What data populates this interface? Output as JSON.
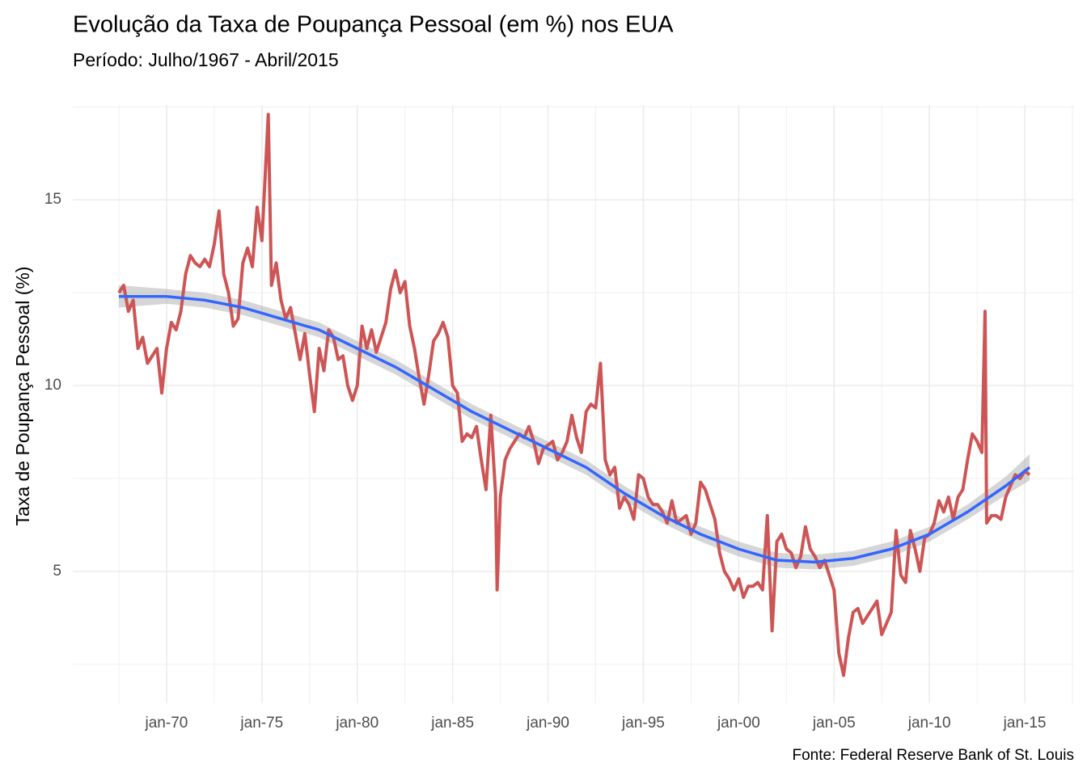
{
  "chart_data": {
    "type": "line",
    "title": "Evolução da Taxa de Poupança Pessoal (em %) nos EUA",
    "subtitle": "Período: Julho/1967 - Abril/2015",
    "y_label": "Taxa de Poupança Pessoal (%)",
    "caption": "Fonte: Federal Reserve Bank of St. Louis",
    "grid": true,
    "xlim": [
      "1965-02",
      "2017-08"
    ],
    "xticks": [
      {
        "value": "1970-01",
        "label": "jan-70"
      },
      {
        "value": "1975-01",
        "label": "jan-75"
      },
      {
        "value": "1980-01",
        "label": "jan-80"
      },
      {
        "value": "1985-01",
        "label": "jan-85"
      },
      {
        "value": "1990-01",
        "label": "jan-90"
      },
      {
        "value": "1995-01",
        "label": "jan-95"
      },
      {
        "value": "2000-01",
        "label": "jan-00"
      },
      {
        "value": "2005-01",
        "label": "jan-05"
      },
      {
        "value": "2010-01",
        "label": "jan-10"
      },
      {
        "value": "2015-01",
        "label": "jan-15"
      }
    ],
    "ylim": [
      1.45,
      17.55
    ],
    "yticks": [
      5,
      10,
      15
    ],
    "series": [
      {
        "color": "#cd5555",
        "x": [
          "1967-07",
          "1967-10",
          "1968-01",
          "1968-04",
          "1968-07",
          "1968-10",
          "1969-01",
          "1969-04",
          "1969-07",
          "1969-10",
          "1970-01",
          "1970-04",
          "1970-07",
          "1970-10",
          "1971-01",
          "1971-04",
          "1971-07",
          "1971-10",
          "1972-01",
          "1972-04",
          "1972-07",
          "1972-10",
          "1973-01",
          "1973-04",
          "1973-07",
          "1973-10",
          "1974-01",
          "1974-04",
          "1974-07",
          "1974-10",
          "1975-01",
          "1975-05",
          "1975-07",
          "1975-10",
          "1976-01",
          "1976-04",
          "1976-07",
          "1976-10",
          "1977-01",
          "1977-04",
          "1977-07",
          "1977-10",
          "1978-01",
          "1978-04",
          "1978-07",
          "1978-10",
          "1979-01",
          "1979-04",
          "1979-07",
          "1979-10",
          "1980-01",
          "1980-04",
          "1980-07",
          "1980-10",
          "1981-01",
          "1981-04",
          "1981-07",
          "1981-10",
          "1982-01",
          "1982-04",
          "1982-07",
          "1982-10",
          "1983-01",
          "1983-04",
          "1983-07",
          "1983-10",
          "1984-01",
          "1984-04",
          "1984-07",
          "1984-10",
          "1985-01",
          "1985-04",
          "1985-07",
          "1985-10",
          "1986-01",
          "1986-04",
          "1986-07",
          "1986-10",
          "1987-01",
          "1987-04",
          "1987-05",
          "1987-07",
          "1987-10",
          "1988-01",
          "1988-04",
          "1988-07",
          "1988-10",
          "1989-01",
          "1989-04",
          "1989-07",
          "1989-10",
          "1990-01",
          "1990-04",
          "1990-07",
          "1990-10",
          "1991-01",
          "1991-04",
          "1991-07",
          "1991-10",
          "1992-01",
          "1992-04",
          "1992-07",
          "1992-10",
          "1993-01",
          "1993-04",
          "1993-07",
          "1993-10",
          "1994-01",
          "1994-04",
          "1994-07",
          "1994-10",
          "1995-01",
          "1995-04",
          "1995-07",
          "1995-10",
          "1996-01",
          "1996-04",
          "1996-07",
          "1996-10",
          "1997-01",
          "1997-04",
          "1997-07",
          "1997-10",
          "1998-01",
          "1998-04",
          "1998-07",
          "1998-10",
          "1999-01",
          "1999-04",
          "1999-07",
          "1999-10",
          "2000-01",
          "2000-04",
          "2000-07",
          "2000-10",
          "2001-01",
          "2001-04",
          "2001-07",
          "2001-10",
          "2002-01",
          "2002-04",
          "2002-07",
          "2002-10",
          "2003-01",
          "2003-04",
          "2003-07",
          "2003-10",
          "2004-01",
          "2004-04",
          "2004-07",
          "2004-10",
          "2005-01",
          "2005-04",
          "2005-07",
          "2005-10",
          "2006-01",
          "2006-04",
          "2006-07",
          "2006-10",
          "2007-01",
          "2007-04",
          "2007-07",
          "2007-10",
          "2008-01",
          "2008-04",
          "2008-07",
          "2008-10",
          "2009-01",
          "2009-04",
          "2009-07",
          "2009-10",
          "2010-01",
          "2010-04",
          "2010-07",
          "2010-10",
          "2011-01",
          "2011-04",
          "2011-07",
          "2011-10",
          "2012-01",
          "2012-04",
          "2012-07",
          "2012-10",
          "2012-12",
          "2013-01",
          "2013-04",
          "2013-07",
          "2013-10",
          "2014-01",
          "2014-04",
          "2014-07",
          "2014-10",
          "2015-01",
          "2015-04"
        ],
        "values": [
          12.5,
          12.7,
          12.0,
          12.3,
          11.0,
          11.3,
          10.6,
          10.8,
          11.0,
          9.8,
          11.0,
          11.7,
          11.5,
          12.0,
          13.0,
          13.5,
          13.3,
          13.2,
          13.4,
          13.2,
          13.8,
          14.7,
          13.0,
          12.5,
          11.6,
          11.8,
          13.3,
          13.7,
          13.2,
          14.8,
          13.9,
          17.3,
          12.7,
          13.3,
          12.3,
          11.8,
          12.1,
          11.4,
          10.7,
          11.4,
          10.3,
          9.3,
          11.0,
          10.4,
          11.5,
          11.3,
          10.7,
          10.8,
          10.0,
          9.6,
          10.0,
          11.6,
          11.0,
          11.5,
          10.9,
          11.3,
          11.7,
          12.6,
          13.1,
          12.5,
          12.8,
          11.6,
          11.0,
          10.2,
          9.5,
          10.3,
          11.2,
          11.4,
          11.7,
          11.3,
          10.0,
          9.8,
          8.5,
          8.7,
          8.6,
          8.9,
          8.0,
          7.2,
          9.2,
          7.1,
          4.5,
          7.0,
          8.0,
          8.3,
          8.5,
          8.7,
          8.6,
          8.9,
          8.5,
          7.9,
          8.3,
          8.4,
          8.5,
          8.0,
          8.2,
          8.5,
          9.2,
          8.6,
          8.2,
          9.3,
          9.5,
          9.4,
          10.6,
          8.0,
          7.6,
          7.8,
          6.7,
          7.0,
          6.8,
          6.4,
          7.6,
          7.5,
          7.0,
          6.8,
          6.8,
          6.6,
          6.3,
          6.9,
          6.3,
          6.4,
          6.5,
          6.0,
          6.3,
          7.4,
          7.2,
          6.8,
          6.4,
          5.5,
          5.0,
          4.8,
          4.5,
          4.8,
          4.3,
          4.6,
          4.6,
          4.7,
          4.5,
          6.5,
          3.4,
          5.8,
          6.0,
          5.6,
          5.5,
          5.1,
          5.4,
          6.2,
          5.6,
          5.4,
          5.1,
          5.3,
          4.9,
          4.5,
          2.8,
          2.2,
          3.2,
          3.9,
          4.0,
          3.6,
          3.8,
          4.0,
          4.2,
          3.3,
          3.6,
          3.9,
          6.1,
          4.9,
          4.7,
          6.1,
          5.6,
          5.0,
          5.9,
          6.0,
          6.3,
          6.9,
          6.6,
          7.0,
          6.4,
          7.0,
          7.2,
          8.0,
          8.7,
          8.5,
          8.2,
          12.0,
          6.3,
          6.5,
          6.5,
          6.4,
          7.0,
          7.3,
          7.6,
          7.5,
          7.7,
          7.6
        ]
      },
      {
        "color": "#3366ff",
        "band_color": "#999999",
        "x": [
          "1967-07",
          "1970-01",
          "1972-01",
          "1974-01",
          "1976-01",
          "1978-01",
          "1980-01",
          "1982-01",
          "1984-01",
          "1986-01",
          "1988-01",
          "1990-01",
          "1992-01",
          "1994-01",
          "1996-01",
          "1998-01",
          "2000-01",
          "2002-01",
          "2004-01",
          "2006-01",
          "2008-01",
          "2010-01",
          "2012-01",
          "2014-01",
          "2015-04"
        ],
        "values": [
          12.4,
          12.4,
          12.3,
          12.1,
          11.8,
          11.5,
          11.0,
          10.5,
          9.9,
          9.3,
          8.8,
          8.3,
          7.8,
          7.1,
          6.5,
          6.0,
          5.6,
          5.3,
          5.25,
          5.35,
          5.6,
          6.0,
          6.6,
          7.3,
          7.8
        ],
        "lower": [
          12.1,
          12.2,
          12.1,
          11.9,
          11.6,
          11.3,
          10.8,
          10.3,
          9.7,
          9.1,
          8.6,
          8.1,
          7.6,
          6.9,
          6.3,
          5.8,
          5.4,
          5.1,
          5.05,
          5.15,
          5.4,
          5.8,
          6.4,
          7.05,
          7.45
        ],
        "upper": [
          12.7,
          12.6,
          12.5,
          12.3,
          12.0,
          11.7,
          11.2,
          10.7,
          10.1,
          9.5,
          9.0,
          8.5,
          8.0,
          7.3,
          6.7,
          6.2,
          5.8,
          5.5,
          5.45,
          5.55,
          5.8,
          6.2,
          6.8,
          7.55,
          8.15
        ]
      }
    ]
  }
}
